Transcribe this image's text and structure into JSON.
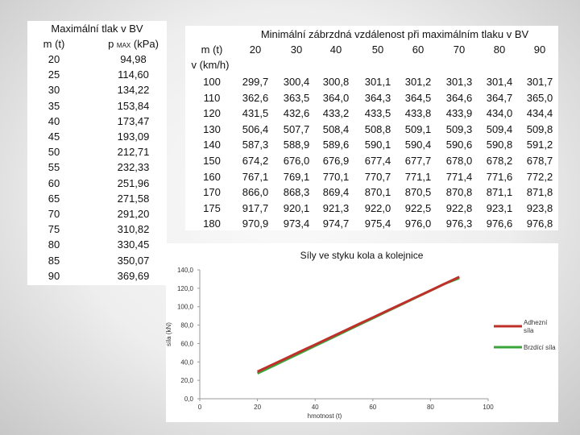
{
  "left_table": {
    "title": "Maximální tlak v BV",
    "col1_header": "m (t)",
    "col2_header_main": "p",
    "col2_header_sub": "MAX",
    "col2_header_unit": " (kPa)",
    "rows": [
      [
        "20",
        "94,98"
      ],
      [
        "25",
        "114,60"
      ],
      [
        "30",
        "134,22"
      ],
      [
        "35",
        "153,84"
      ],
      [
        "40",
        "173,47"
      ],
      [
        "45",
        "193,09"
      ],
      [
        "50",
        "212,71"
      ],
      [
        "55",
        "232,33"
      ],
      [
        "60",
        "251,96"
      ],
      [
        "65",
        "271,58"
      ],
      [
        "70",
        "291,20"
      ],
      [
        "75",
        "310,82"
      ],
      [
        "80",
        "330,45"
      ],
      [
        "85",
        "350,07"
      ],
      [
        "90",
        "369,69"
      ]
    ]
  },
  "right_table": {
    "title": "Minimální zábrzdná vzdálenost při maximálním tlaku v BV",
    "mass_label": "m (t)",
    "speed_label": "v (km/h)",
    "masses": [
      "20",
      "30",
      "40",
      "50",
      "60",
      "70",
      "80",
      "90"
    ],
    "rows": [
      [
        "100",
        "299,7",
        "300,4",
        "300,8",
        "301,1",
        "301,2",
        "301,3",
        "301,4",
        "301,7"
      ],
      [
        "110",
        "362,6",
        "363,5",
        "364,0",
        "364,3",
        "364,5",
        "364,6",
        "364,7",
        "365,0"
      ],
      [
        "120",
        "431,5",
        "432,6",
        "433,2",
        "433,5",
        "433,8",
        "433,9",
        "434,0",
        "434,4"
      ],
      [
        "130",
        "506,4",
        "507,7",
        "508,4",
        "508,8",
        "509,1",
        "509,3",
        "509,4",
        "509,8"
      ],
      [
        "140",
        "587,3",
        "588,9",
        "589,6",
        "590,1",
        "590,4",
        "590,6",
        "590,8",
        "591,2"
      ],
      [
        "150",
        "674,2",
        "676,0",
        "676,9",
        "677,4",
        "677,7",
        "678,0",
        "678,2",
        "678,7"
      ],
      [
        "160",
        "767,1",
        "769,1",
        "770,1",
        "770,7",
        "771,1",
        "771,4",
        "771,6",
        "772,2"
      ],
      [
        "170",
        "866,0",
        "868,3",
        "869,4",
        "870,1",
        "870,5",
        "870,8",
        "871,1",
        "871,8"
      ],
      [
        "175",
        "917,7",
        "920,1",
        "921,3",
        "922,0",
        "922,5",
        "922,8",
        "923,1",
        "923,8"
      ],
      [
        "180",
        "970,9",
        "973,4",
        "974,7",
        "975,4",
        "976,0",
        "976,3",
        "976,6",
        "976,8"
      ]
    ]
  },
  "chart_data": {
    "type": "line",
    "title": "Síly ve styku kola a kolejnice",
    "xlabel": "hmotnost (t)",
    "ylabel": "síla (kN)",
    "xlim": [
      0,
      100
    ],
    "ylim": [
      0,
      140
    ],
    "x_ticks": [
      "0",
      "20",
      "40",
      "60",
      "80",
      "100"
    ],
    "y_ticks": [
      "0,0",
      "20,0",
      "40,0",
      "60,0",
      "80,0",
      "100,0",
      "120,0",
      "140,0"
    ],
    "grid": false,
    "legend_position": "right",
    "series": [
      {
        "name": "Adhezní síla",
        "color": "#c0302b",
        "x": [
          20,
          25,
          30,
          35,
          40,
          45,
          50,
          55,
          60,
          65,
          70,
          75,
          80,
          85,
          90
        ],
        "y": [
          29.4,
          36.8,
          44.1,
          51.5,
          58.8,
          66.2,
          73.5,
          80.9,
          88.2,
          95.6,
          102.9,
          110.3,
          117.6,
          125.0,
          132.4
        ]
      },
      {
        "name": "Brzdící síla",
        "color": "#3aa63a",
        "x": [
          20,
          25,
          30,
          35,
          40,
          45,
          50,
          55,
          60,
          65,
          70,
          75,
          80,
          85,
          90
        ],
        "y": [
          27.5,
          35.0,
          42.5,
          50.0,
          57.5,
          65.0,
          72.5,
          80.0,
          87.5,
          95.0,
          102.5,
          110.0,
          117.5,
          125.0,
          131.0
        ]
      }
    ]
  }
}
